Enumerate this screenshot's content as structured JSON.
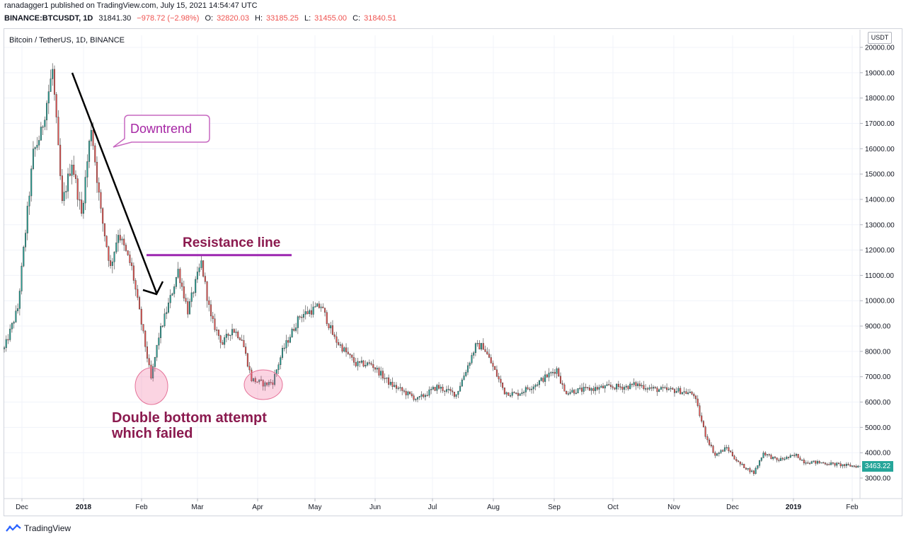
{
  "header": {
    "publisher_line": "ranadagger1 published on TradingView.com, July 15, 2021 14:54:47 UTC",
    "symbol": "BINANCE:BTCUSDT, 1D",
    "last": "31841.30",
    "change": "−978.72 (−2.98%)",
    "o_label": "O:",
    "o_value": "32820.03",
    "h_label": "H:",
    "h_value": "33185.25",
    "l_label": "L:",
    "l_value": "31455.00",
    "c_label": "C:",
    "c_value": "31840.51"
  },
  "footer": {
    "brand": "TradingView"
  },
  "chart_data": {
    "type": "candlestick",
    "title": "Bitcoin / TetherUS, 1D, BINANCE",
    "currency": "USDT",
    "last_price_label": "3463.22",
    "ylim": [
      2500,
      20600
    ],
    "y_ticks": [
      "20000.00",
      "19000.00",
      "18000.00",
      "17000.00",
      "16000.00",
      "15000.00",
      "14000.00",
      "13000.00",
      "12000.00",
      "11000.00",
      "10000.00",
      "9000.00",
      "8000.00",
      "7000.00",
      "6000.00",
      "5000.00",
      "4000.00",
      "3000.00"
    ],
    "x_ticks": [
      "Dec",
      "2018",
      "Feb",
      "Mar",
      "Apr",
      "May",
      "Jun",
      "Jul",
      "Aug",
      "Sep",
      "Oct",
      "Nov",
      "Dec",
      "2019",
      "Feb"
    ],
    "x_range": [
      "2017-11-22",
      "2019-02-08"
    ],
    "price_path": [
      [
        "2017-11-22",
        8100
      ],
      [
        "2017-11-29",
        9700
      ],
      [
        "2017-12-07",
        15800
      ],
      [
        "2017-12-11",
        16600
      ],
      [
        "2017-12-17",
        19100
      ],
      [
        "2017-12-22",
        13800
      ],
      [
        "2017-12-27",
        15500
      ],
      [
        "2018-01-01",
        13400
      ],
      [
        "2018-01-06",
        16900
      ],
      [
        "2018-01-11",
        13500
      ],
      [
        "2018-01-16",
        11300
      ],
      [
        "2018-01-20",
        12700
      ],
      [
        "2018-01-27",
        11300
      ],
      [
        "2018-02-01",
        9100
      ],
      [
        "2018-02-06",
        6900
      ],
      [
        "2018-02-10",
        8600
      ],
      [
        "2018-02-16",
        10100
      ],
      [
        "2018-02-20",
        11200
      ],
      [
        "2018-02-25",
        9600
      ],
      [
        "2018-03-04",
        11500
      ],
      [
        "2018-03-09",
        9300
      ],
      [
        "2018-03-15",
        8300
      ],
      [
        "2018-03-20",
        8900
      ],
      [
        "2018-03-25",
        8500
      ],
      [
        "2018-03-30",
        6900
      ],
      [
        "2018-04-06",
        6700
      ],
      [
        "2018-04-10",
        6800
      ],
      [
        "2018-04-15",
        8000
      ],
      [
        "2018-04-24",
        9400
      ],
      [
        "2018-05-05",
        9800
      ],
      [
        "2018-05-12",
        8500
      ],
      [
        "2018-05-23",
        7500
      ],
      [
        "2018-05-31",
        7500
      ],
      [
        "2018-06-10",
        6700
      ],
      [
        "2018-06-24",
        6100
      ],
      [
        "2018-07-04",
        6600
      ],
      [
        "2018-07-14",
        6300
      ],
      [
        "2018-07-24",
        8200
      ],
      [
        "2018-07-28",
        8200
      ],
      [
        "2018-08-08",
        6400
      ],
      [
        "2018-08-14",
        6300
      ],
      [
        "2018-08-24",
        6700
      ],
      [
        "2018-09-04",
        7300
      ],
      [
        "2018-09-08",
        6400
      ],
      [
        "2018-09-20",
        6500
      ],
      [
        "2018-10-01",
        6600
      ],
      [
        "2018-10-10",
        6600
      ],
      [
        "2018-10-15",
        6700
      ],
      [
        "2018-10-25",
        6500
      ],
      [
        "2018-11-06",
        6450
      ],
      [
        "2018-11-14",
        6300
      ],
      [
        "2018-11-20",
        4700
      ],
      [
        "2018-11-25",
        3900
      ],
      [
        "2018-12-01",
        4200
      ],
      [
        "2018-12-07",
        3600
      ],
      [
        "2018-12-15",
        3200
      ],
      [
        "2018-12-20",
        4000
      ],
      [
        "2018-12-27",
        3700
      ],
      [
        "2019-01-06",
        3900
      ],
      [
        "2019-01-10",
        3650
      ],
      [
        "2019-01-20",
        3600
      ],
      [
        "2019-01-31",
        3500
      ],
      [
        "2019-02-08",
        3460
      ]
    ],
    "annotations": {
      "downtrend_label": "Downtrend",
      "resistance_label": "Resistance line",
      "double_bottom_line1": "Double bottom attempt",
      "double_bottom_line2": "which failed",
      "resistance_level": 11800
    }
  }
}
